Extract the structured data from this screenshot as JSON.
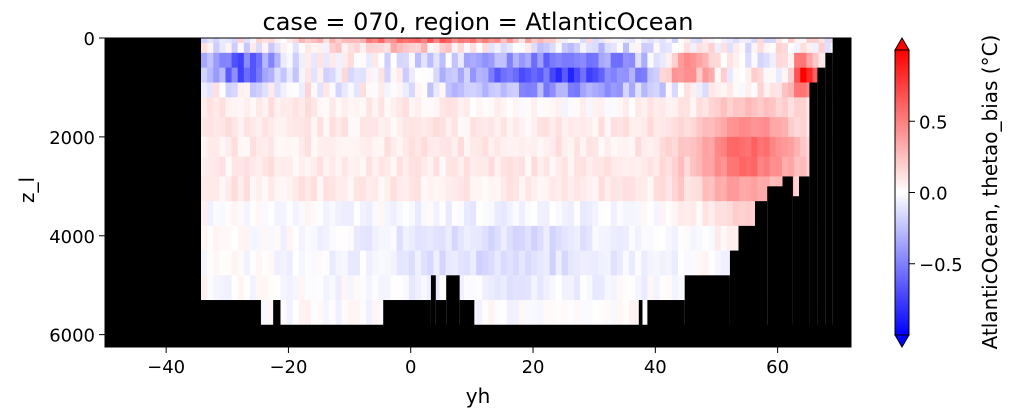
{
  "chart_data": {
    "type": "heatmap",
    "title": "case = 070, region = AtlanticOcean",
    "xlabel": "yh",
    "ylabel": "z_l",
    "xlim": [
      -50,
      72
    ],
    "ylim": [
      6250,
      0
    ],
    "y_inverted": true,
    "xticks": [
      -40,
      -20,
      0,
      20,
      40,
      60
    ],
    "xtick_labels": [
      "−40",
      "−20",
      "0",
      "20",
      "40",
      "60"
    ],
    "yticks": [
      0,
      2000,
      4000,
      6000
    ],
    "ytick_labels": [
      "0",
      "2000",
      "4000",
      "6000"
    ],
    "colormap": "bwr",
    "colors": {
      "negative": "#0000ff",
      "zero": "#ffffff",
      "positive": "#ff0000",
      "land": "#000000"
    },
    "colorbar": {
      "label": "AtlanticOcean, thetao_bias (°C)",
      "vmin": -1.0,
      "vmax": 1.0,
      "extend": "both",
      "ticks": [
        -0.5,
        0.0,
        0.5
      ],
      "tick_labels": [
        "−0.5",
        "0.0",
        "0.5"
      ]
    },
    "depth_levels": [
      0,
      100,
      300,
      600,
      900,
      1200,
      1600,
      2000,
      2400,
      2800,
      3300,
      3800,
      4300,
      4800,
      5300,
      5800,
      6250
    ],
    "bias_features": [
      {
        "description": "strong cold bias",
        "yh_range": [
          -34,
          -20
        ],
        "z_range": [
          300,
          900
        ],
        "value": -0.8
      },
      {
        "description": "strong warm bias",
        "yh_range": [
          -15,
          25
        ],
        "z_range": [
          0,
          200
        ],
        "value": 0.8
      },
      {
        "description": "cold bias",
        "yh_range": [
          5,
          45
        ],
        "z_range": [
          200,
          1200
        ],
        "value": -0.7
      },
      {
        "description": "warm bias",
        "yh_range": [
          40,
          50
        ],
        "z_range": [
          300,
          900
        ],
        "value": 0.8
      },
      {
        "description": "strong warm bias",
        "yh_range": [
          62,
          67
        ],
        "z_range": [
          300,
          1200
        ],
        "value": 0.95
      },
      {
        "description": "warm bias along slope",
        "yh_range": [
          45,
          65
        ],
        "z_range": [
          1200,
          3500
        ],
        "value": 0.6
      },
      {
        "description": "weak cold bias",
        "yh_range": [
          -10,
          40
        ],
        "z_range": [
          3500,
          5200
        ],
        "value": -0.15
      }
    ],
    "land": [
      {
        "x0": -50,
        "x1": -34.3,
        "z0": 0,
        "z1": 6250
      },
      {
        "x0": -34.3,
        "x1": 72,
        "z0": 5800,
        "z1": 6250
      },
      {
        "x0": -34.3,
        "x1": -24.5,
        "z0": 5300,
        "z1": 6250
      },
      {
        "x0": -22.5,
        "x1": -21.3,
        "z0": 5300,
        "z1": 6250
      },
      {
        "x0": -4.5,
        "x1": 3.3,
        "z0": 5300,
        "z1": 6250
      },
      {
        "x0": 3.3,
        "x1": 4.1,
        "z0": 4800,
        "z1": 6250
      },
      {
        "x0": 4.1,
        "x1": 5.8,
        "z0": 5300,
        "z1": 6250
      },
      {
        "x0": 5.8,
        "x1": 8.0,
        "z0": 4800,
        "z1": 6250
      },
      {
        "x0": 8.0,
        "x1": 10.4,
        "z0": 5300,
        "z1": 6250
      },
      {
        "x0": 37.3,
        "x1": 37.9,
        "z0": 5300,
        "z1": 6250
      },
      {
        "x0": 38.7,
        "x1": 44.8,
        "z0": 5300,
        "z1": 6250
      },
      {
        "x0": 44.8,
        "x1": 52.2,
        "z0": 4800,
        "z1": 6250
      },
      {
        "x0": 52.2,
        "x1": 53.6,
        "z0": 4300,
        "z1": 6250
      },
      {
        "x0": 53.6,
        "x1": 56.3,
        "z0": 3800,
        "z1": 6250
      },
      {
        "x0": 56.3,
        "x1": 58.3,
        "z0": 3300,
        "z1": 6250
      },
      {
        "x0": 58.3,
        "x1": 60.8,
        "z0": 3000,
        "z1": 6250
      },
      {
        "x0": 60.8,
        "x1": 62.5,
        "z0": 2800,
        "z1": 6250
      },
      {
        "x0": 62.5,
        "x1": 63.5,
        "z0": 3200,
        "z1": 6250
      },
      {
        "x0": 63.5,
        "x1": 65.2,
        "z0": 2800,
        "z1": 6250
      },
      {
        "x0": 65.2,
        "x1": 66.5,
        "z0": 900,
        "z1": 6250
      },
      {
        "x0": 66.5,
        "x1": 67.8,
        "z0": 600,
        "z1": 6250
      },
      {
        "x0": 67.8,
        "x1": 69.0,
        "z0": 300,
        "z1": 6250
      },
      {
        "x0": 69.0,
        "x1": 72,
        "z0": 0,
        "z1": 6250
      }
    ]
  }
}
